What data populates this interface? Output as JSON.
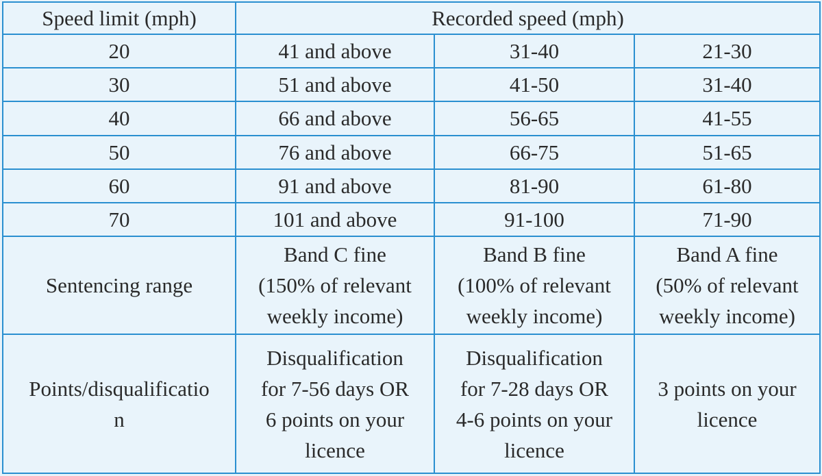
{
  "header": {
    "speed_limit": "Speed limit (mph)",
    "recorded_speed": "Recorded speed (mph)"
  },
  "rows": [
    {
      "limit": "20",
      "band_c": "41 and above",
      "band_b": "31-40",
      "band_a": "21-30"
    },
    {
      "limit": "30",
      "band_c": "51 and above",
      "band_b": "41-50",
      "band_a": "31-40"
    },
    {
      "limit": "40",
      "band_c": "66 and above",
      "band_b": "56-65",
      "band_a": "41-55"
    },
    {
      "limit": "50",
      "band_c": "76 and above",
      "band_b": "66-75",
      "band_a": "51-65"
    },
    {
      "limit": "60",
      "band_c": "91 and above",
      "band_b": "81-90",
      "band_a": "61-80"
    },
    {
      "limit": "70",
      "band_c": "101 and above",
      "band_b": "91-100",
      "band_a": "71-90"
    }
  ],
  "sentencing": {
    "label": "Sentencing range",
    "band_c": "Band C fine\n(150% of relevant\nweekly income)",
    "band_b": "Band B fine\n(100% of relevant\nweekly income)",
    "band_a": "Band A fine\n(50% of relevant\nweekly income)"
  },
  "points": {
    "label": "Points/disqualificatio\nn",
    "band_c": "Disqualification\nfor 7-56 days OR\n6 points on your\nlicence",
    "band_b": "Disqualification\nfor 7-28 days OR\n4-6 points on your\nlicence",
    "band_a": "3 points on your\nlicence"
  },
  "colors": {
    "border": "#2a8fd0",
    "background": "#e9f4fb",
    "text": "#2a2a2a"
  }
}
